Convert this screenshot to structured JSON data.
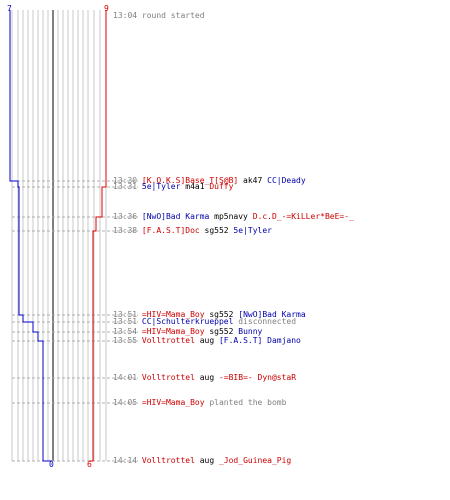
{
  "scores": {
    "top_left": "7",
    "top_right": "9",
    "bottom_left": "0",
    "bottom_right": "6"
  },
  "colors": {
    "blue_team": "#0000cc",
    "red_team": "#dd0000",
    "grid": "#c8c8c8",
    "gray_text": "#808080"
  },
  "events": [
    {
      "time": "13:04",
      "parts": [
        {
          "text": "round started",
          "color": "gray"
        }
      ]
    },
    {
      "time": "13:30",
      "parts": [
        {
          "text": "[K.O.K.S]Base_T[S@B]",
          "color": "red"
        },
        {
          "text": " ak47 ",
          "color": "blk"
        },
        {
          "text": "CC|Deady",
          "color": "blue"
        }
      ]
    },
    {
      "time": "13:31",
      "parts": [
        {
          "text": "5e|Tyler",
          "color": "blue"
        },
        {
          "text": " m4a1 ",
          "color": "blk"
        },
        {
          "text": "Duffy",
          "color": "red"
        }
      ]
    },
    {
      "time": "13:36",
      "parts": [
        {
          "text": "[NwO]Bad Karma",
          "color": "blue"
        },
        {
          "text": " mp5navy ",
          "color": "blk"
        },
        {
          "text": "D.c.D_-=KiLLer*BeE=-_",
          "color": "red"
        }
      ]
    },
    {
      "time": "13:38",
      "parts": [
        {
          "text": "[F.A.S.T]Doc",
          "color": "red"
        },
        {
          "text": "  sg552 ",
          "color": "blk"
        },
        {
          "text": "5e|Tyler",
          "color": "blue"
        }
      ]
    },
    {
      "time": "13:51",
      "parts": [
        {
          "text": "=HIV=Mama_Boy",
          "color": "red"
        },
        {
          "text": " sg552 ",
          "color": "blk"
        },
        {
          "text": "[NwO]Bad Karma",
          "color": "blue"
        }
      ]
    },
    {
      "time": "13:51",
      "parts": [
        {
          "text": "CC|Schulterkrueppel",
          "color": "blue"
        },
        {
          "text": " disconnected",
          "color": "gray"
        }
      ]
    },
    {
      "time": "13:54",
      "parts": [
        {
          "text": "=HIV=Mama_Boy",
          "color": "red"
        },
        {
          "text": " sg552 ",
          "color": "blk"
        },
        {
          "text": "Bunny",
          "color": "blue"
        }
      ]
    },
    {
      "time": "13:55",
      "parts": [
        {
          "text": "Volltrottel",
          "color": "red"
        },
        {
          "text": " aug ",
          "color": "blk"
        },
        {
          "text": "[F.A.S.T] Damjano",
          "color": "blue"
        }
      ]
    },
    {
      "time": "14:01",
      "parts": [
        {
          "text": "Volltrottel",
          "color": "red"
        },
        {
          "text": " aug ",
          "color": "blk"
        },
        {
          "text": "-=BIB=- Dyn@staR",
          "color": "red"
        }
      ]
    },
    {
      "time": "14:05",
      "parts": [
        {
          "text": "=HIV=Mama_Boy",
          "color": "red"
        },
        {
          "text": " planted the bomb",
          "color": "gray"
        }
      ]
    },
    {
      "time": "14:14",
      "parts": [
        {
          "text": "Volltrottel",
          "color": "red"
        },
        {
          "text": " aug ",
          "color": "blk"
        },
        {
          "text": "_Jod_Guinea_Pig",
          "color": "red"
        }
      ]
    }
  ]
}
